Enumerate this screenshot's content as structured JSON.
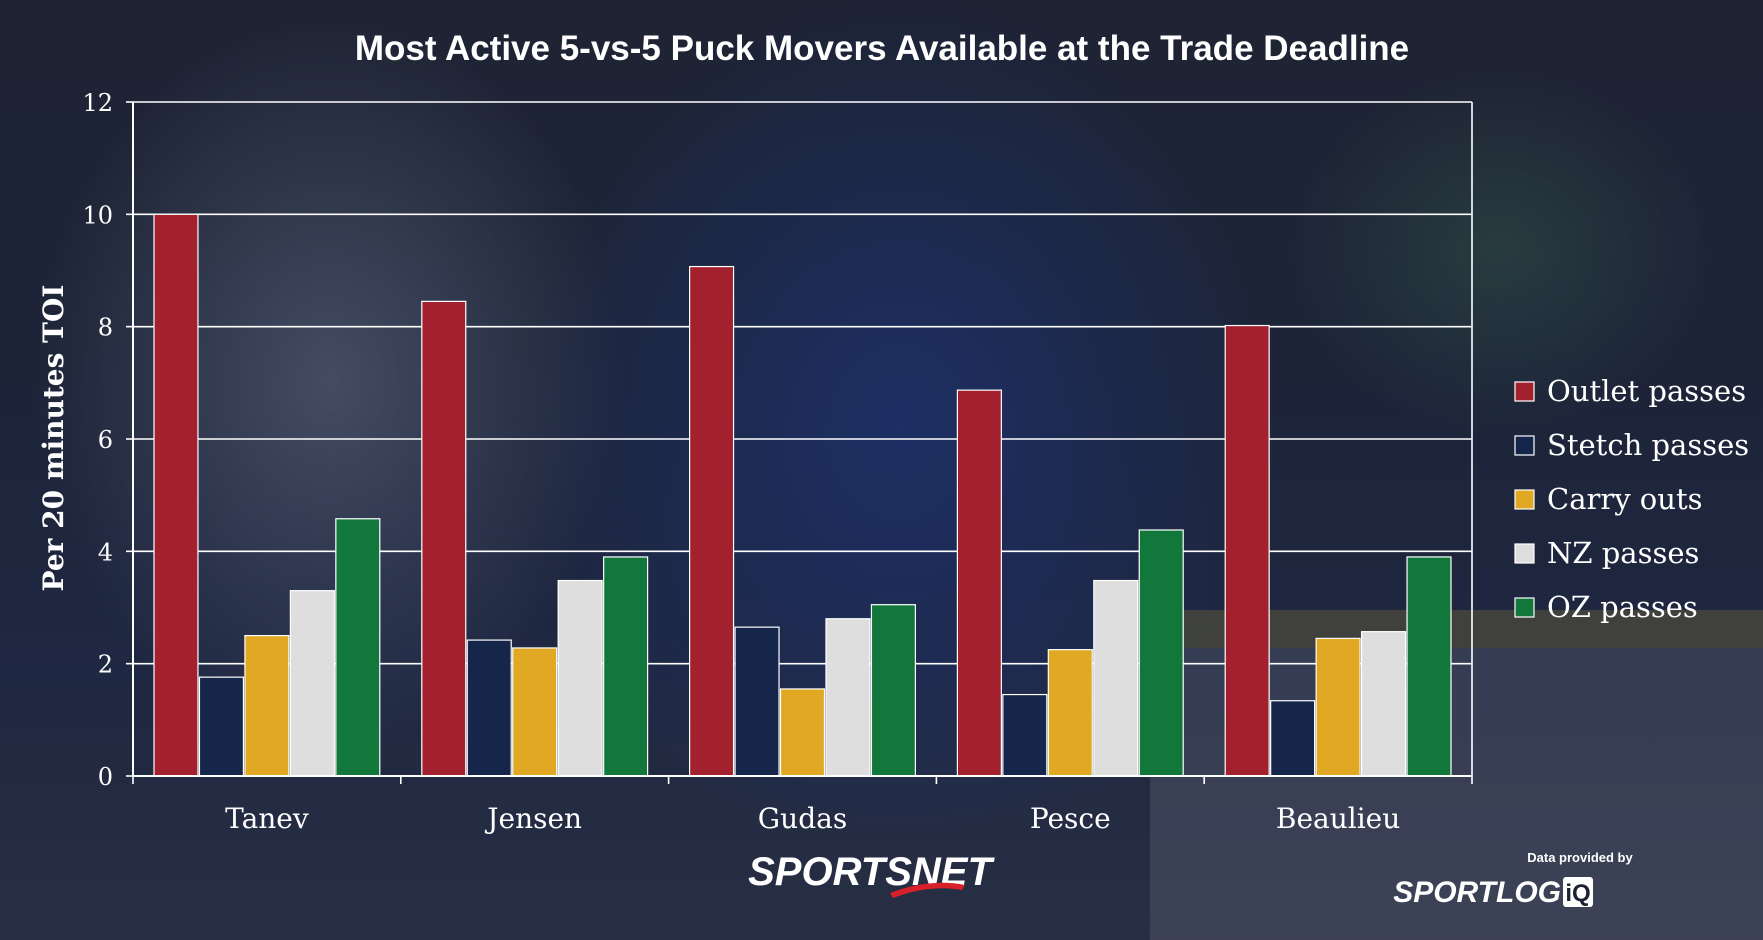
{
  "chart_data": {
    "type": "bar",
    "title": "Most Active 5-vs-5 Puck Movers Available at the Trade Deadline",
    "ylabel": "Per 20 minutes TOI",
    "xlabel": "",
    "ylim": [
      0,
      12
    ],
    "yticks": [
      0,
      2,
      4,
      6,
      8,
      10,
      12
    ],
    "grid": true,
    "legend_position": "right",
    "categories": [
      "Tanev",
      "Jensen",
      "Gudas",
      "Pesce",
      "Beaulieu"
    ],
    "series": [
      {
        "name": "Outlet passes",
        "color": "#a3212f",
        "values": [
          10.0,
          8.45,
          9.07,
          6.87,
          8.02
        ]
      },
      {
        "name": "Stetch passes",
        "color": "#15264a",
        "values": [
          1.76,
          2.42,
          2.65,
          1.45,
          1.34
        ]
      },
      {
        "name": "Carry outs",
        "color": "#e0a823",
        "values": [
          2.5,
          2.28,
          1.55,
          2.25,
          2.45
        ]
      },
      {
        "name": "NZ passes",
        "color": "#dedede",
        "values": [
          3.3,
          3.48,
          2.8,
          3.48,
          2.57
        ]
      },
      {
        "name": "OZ passes",
        "color": "#11773b",
        "values": [
          4.58,
          3.9,
          3.05,
          4.38,
          3.9
        ]
      }
    ]
  },
  "credits": {
    "brand_left": "SPORTSNET",
    "data_provided_by": "Data provided by",
    "brand_right_main": "SPORTLOG",
    "brand_right_suffix": "iQ"
  }
}
